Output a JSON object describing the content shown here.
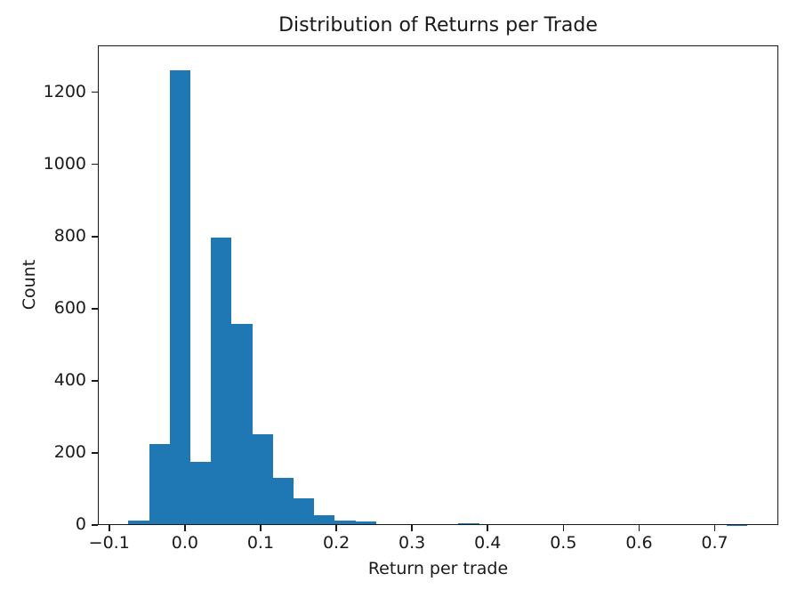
{
  "chart_data": {
    "type": "bar",
    "subtype": "histogram",
    "title": "Distribution of Returns per Trade",
    "xlabel": "Return per trade",
    "ylabel": "Count",
    "bar_color": "#1f77b4",
    "axis_color": "#1a1a1a",
    "xlim": [
      -0.115,
      0.784
    ],
    "ylim": [
      0,
      1330
    ],
    "x_ticks": [
      -0.1,
      0.0,
      0.1,
      0.2,
      0.3,
      0.4,
      0.5,
      0.6,
      0.7
    ],
    "x_tick_labels": [
      "−0.1",
      "0.0",
      "0.1",
      "0.2",
      "0.3",
      "0.4",
      "0.5",
      "0.6",
      "0.7"
    ],
    "y_ticks": [
      0,
      200,
      400,
      600,
      800,
      1000,
      1200
    ],
    "y_tick_labels": [
      "0",
      "200",
      "400",
      "600",
      "800",
      "1000",
      "1200"
    ],
    "grid": false,
    "legend": null,
    "bin_edges": [
      -0.0745,
      -0.04725,
      -0.02,
      0.00725,
      0.0345,
      0.06175,
      0.089,
      0.11625,
      0.1435,
      0.17075,
      0.198,
      0.22525,
      0.2525,
      0.27975,
      0.307,
      0.33425,
      0.3615,
      0.38875,
      0.416,
      0.44325,
      0.4705,
      0.49775,
      0.525,
      0.55225,
      0.5795,
      0.60675,
      0.634,
      0.66125,
      0.6885,
      0.71575,
      0.743
    ],
    "counts": [
      13,
      225,
      1262,
      174,
      798,
      558,
      252,
      131,
      74,
      27,
      12,
      10,
      0,
      0,
      2,
      0,
      5,
      0,
      0,
      0,
      0,
      0,
      0,
      0,
      0,
      0,
      0,
      0,
      0,
      1
    ]
  }
}
